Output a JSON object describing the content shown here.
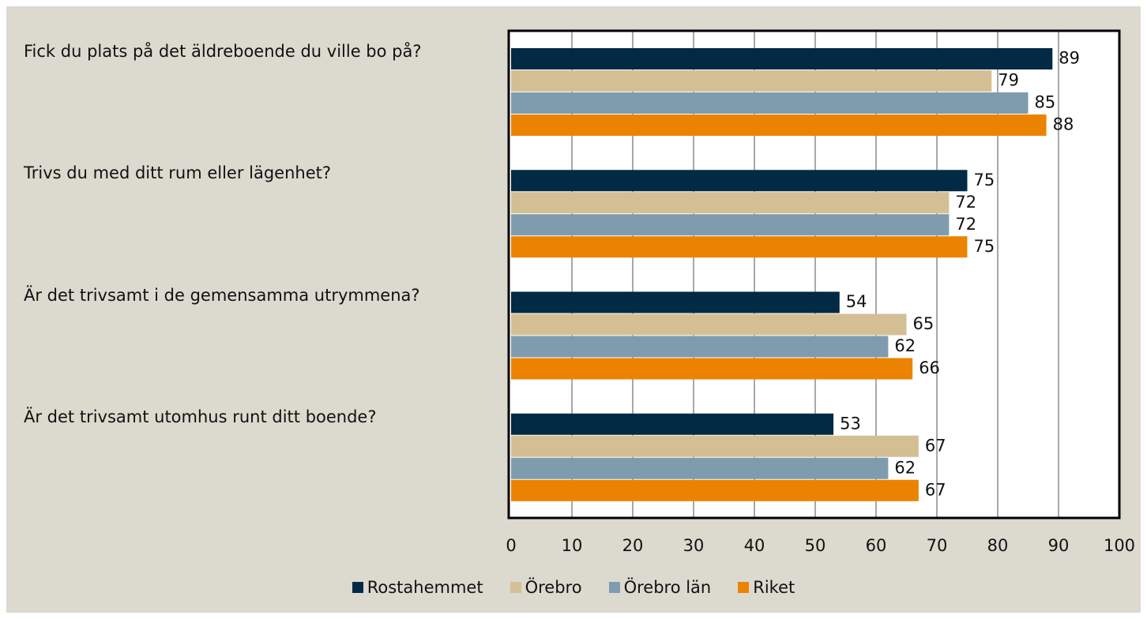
{
  "chart_data": {
    "type": "bar",
    "categories": [
      "Fick du plats på det äldreboende du ville bo på?",
      "Trivs du med ditt rum eller lägenhet?",
      "Är det trivsamt i de gemensamma utrymmena?",
      "Är det trivsamt utomhus runt ditt boende?"
    ],
    "series": [
      {
        "name": "Rostahemmet",
        "color": "#022a44",
        "values": [
          89,
          75,
          54,
          53
        ]
      },
      {
        "name": "Örebro",
        "color": "#d4bf95",
        "values": [
          79,
          72,
          65,
          67
        ]
      },
      {
        "name": "Örebro län",
        "color": "#7f9caf",
        "values": [
          85,
          72,
          62,
          62
        ]
      },
      {
        "name": "Riket",
        "color": "#ec8300",
        "values": [
          88,
          75,
          66,
          67
        ]
      }
    ],
    "xlim": [
      0,
      100
    ],
    "xticks": [
      0,
      10,
      20,
      30,
      40,
      50,
      60,
      70,
      80,
      90,
      100
    ],
    "grid": true
  }
}
